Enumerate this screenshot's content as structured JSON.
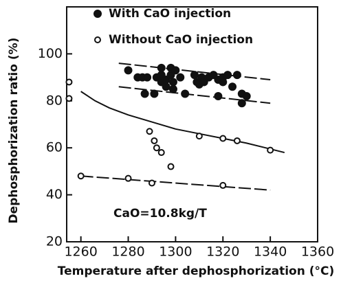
{
  "chart_data": {
    "type": "scatter",
    "x_label": "Temperature after dephosphorization (°C)",
    "y_label": "Dephosphorization ratio (%)",
    "annotation": "CaO=10.8kg/T",
    "xlim": [
      1254,
      1360
    ],
    "xticks": [
      1260,
      1280,
      1300,
      1320,
      1340,
      1360
    ],
    "ylim": [
      20,
      120
    ],
    "yticks": [
      20,
      40,
      60,
      80,
      100
    ],
    "legend": "top-left",
    "series": [
      {
        "name": "With CaO injection",
        "marker": "filled",
        "color": "#111111",
        "x": [
          1280,
          1284,
          1286,
          1288,
          1287,
          1291,
          1292,
          1294,
          1294,
          1294,
          1296,
          1296,
          1298,
          1298,
          1299,
          1299,
          1300,
          1302,
          1304,
          1308,
          1309,
          1310,
          1311,
          1312,
          1314,
          1316,
          1318,
          1318,
          1320,
          1320,
          1322,
          1324,
          1326,
          1328,
          1328,
          1330
        ],
        "y": [
          93,
          90,
          90,
          90,
          83,
          83,
          90,
          94,
          91,
          88,
          86,
          89,
          94,
          91,
          88,
          85,
          93,
          90,
          83,
          91,
          88,
          87,
          90,
          88,
          90,
          91,
          89,
          82,
          88,
          90,
          91,
          86,
          91,
          79,
          83,
          82
        ]
      },
      {
        "name": "Without CaO injection",
        "marker": "open",
        "color": "#111111",
        "x": [
          1255,
          1255,
          1260,
          1280,
          1290,
          1320,
          1289,
          1291,
          1292,
          1294,
          1298,
          1310,
          1320,
          1326,
          1340
        ],
        "y": [
          88,
          81,
          48,
          47,
          45,
          44,
          67,
          63,
          60,
          58,
          52,
          65,
          64,
          63,
          59
        ]
      }
    ],
    "fit_lines": [
      {
        "dashed": true,
        "x": [
          1276,
          1340
        ],
        "y": [
          96,
          89
        ]
      },
      {
        "dashed": true,
        "x": [
          1276,
          1340
        ],
        "y": [
          86,
          79
        ]
      },
      {
        "dashed": false,
        "x": [
          1260,
          1266,
          1272,
          1280,
          1290,
          1300,
          1310,
          1320,
          1330,
          1346
        ],
        "y": [
          84,
          80,
          77,
          74,
          71,
          68,
          66,
          64,
          62,
          58
        ]
      },
      {
        "dashed": true,
        "x": [
          1260,
          1340
        ],
        "y": [
          48,
          42
        ]
      }
    ]
  }
}
